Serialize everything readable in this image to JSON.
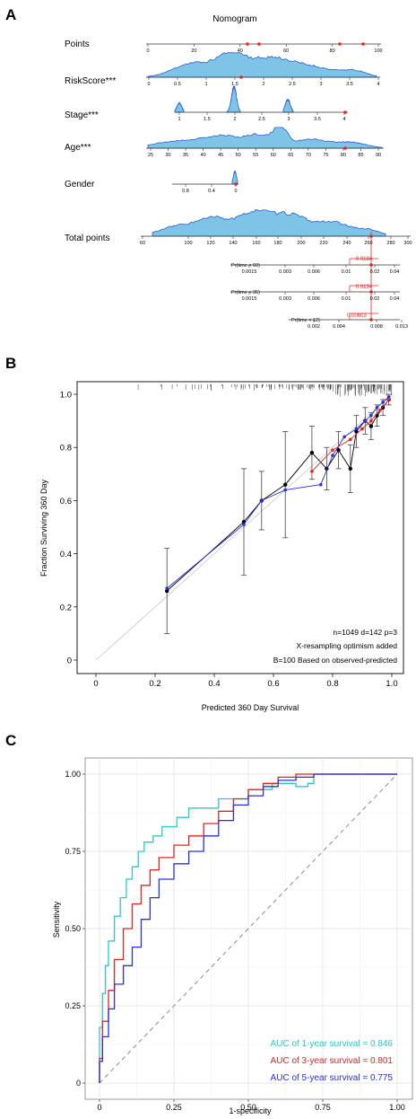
{
  "panels": {
    "A": {
      "label": "A",
      "title": "Nomogram",
      "points_label": "Points",
      "points_ticks": [
        "0",
        "20",
        "40",
        "60",
        "80",
        "100"
      ],
      "rows": [
        {
          "label": "RiskScore***",
          "ticks": [
            "0",
            "0.5",
            "1",
            "1.5",
            "2",
            "2.5",
            "3",
            "3.5",
            "4"
          ]
        },
        {
          "label": "Stage***",
          "ticks": [
            "1",
            "1.5",
            "2",
            "2.5",
            "3",
            "3.5",
            "4"
          ]
        },
        {
          "label": "Age***",
          "ticks": [
            "25",
            "30",
            "35",
            "40",
            "45",
            "50",
            "55",
            "60",
            "65",
            "70",
            "75",
            "80",
            "85",
            "90"
          ]
        },
        {
          "label": "Gender",
          "ticks": [
            "0.8",
            "0.4",
            "0"
          ]
        }
      ],
      "total_label": "Total points",
      "total_ticks": [
        "60",
        "100",
        "120",
        "140",
        "160",
        "180",
        "200",
        "220",
        "240",
        "260",
        "280",
        "300"
      ],
      "total_value": "268",
      "prob_rows": [
        {
          "label": "Pr(time < 60)",
          "ticks": [
            "0.0015",
            "0.003",
            "0.006",
            "0.01",
            "0.02",
            "0.04"
          ],
          "value": "0.0184"
        },
        {
          "label": "Pr(time < 36)",
          "ticks": [
            "0.0015",
            "0.003",
            "0.006",
            "0.01",
            "0.02",
            "0.04"
          ],
          "value": "0.0134"
        },
        {
          "label": "Pr(time < 12)",
          "ticks": [
            "0.002",
            "0.004",
            "0.008",
            "0.013"
          ],
          "value": "0.00603"
        }
      ]
    },
    "B": {
      "label": "B",
      "xlabel": "Predicted 360 Day Survival",
      "ylabel": "Fraction Surviving 360 Day",
      "xticks": [
        "0",
        "0.2",
        "0.4",
        "0.6",
        "0.8",
        "1.0"
      ],
      "yticks": [
        "0",
        "0.2",
        "0.4",
        "0.6",
        "0.8",
        "1.0"
      ],
      "notes": [
        "n=1049 d=142 p=3",
        "X-resampling optimism added",
        "B=100 Based on observed-predicted"
      ]
    },
    "C": {
      "label": "C",
      "xlabel": "1-specificity",
      "ylabel": "Sensitivity",
      "xticks": [
        "0",
        "0.25",
        "0.50",
        "0.75",
        "1.00"
      ],
      "yticks": [
        "0",
        "0.25",
        "0.50",
        "0.75",
        "1.00"
      ],
      "legend": [
        {
          "text": "AUC of 1-year survival = 0.846",
          "color": "#2ec7c7"
        },
        {
          "text": "AUC of 3-year survival = 0.801",
          "color": "#e8231f"
        },
        {
          "text": "AUC of 5-year survival = 0.775",
          "color": "#2b2fe0"
        }
      ]
    }
  },
  "chart_data": [
    {
      "type": "area",
      "title": "Nomogram",
      "axes": [
        {
          "name": "Points",
          "range": [
            0,
            100
          ]
        },
        {
          "name": "RiskScore***",
          "range": [
            0,
            4
          ]
        },
        {
          "name": "Stage***",
          "range": [
            1,
            4
          ]
        },
        {
          "name": "Age***",
          "range": [
            25,
            90
          ]
        },
        {
          "name": "Gender",
          "range": [
            0,
            1
          ]
        },
        {
          "name": "Total points",
          "range": [
            60,
            300
          ]
        }
      ],
      "total_points_selected": 268,
      "probabilities": [
        {
          "name": "Pr(time < 60)",
          "value": 0.0184
        },
        {
          "name": "Pr(time < 36)",
          "value": 0.0134
        },
        {
          "name": "Pr(time < 12)",
          "value": 0.00603
        }
      ]
    },
    {
      "type": "line",
      "xlabel": "Predicted 360 Day Survival",
      "ylabel": "Fraction Surviving 360 Day",
      "xlim": [
        0,
        1
      ],
      "ylim": [
        0,
        1
      ],
      "series": [
        {
          "color": "#000000",
          "x": [
            0.24,
            0.5,
            0.56,
            0.64,
            0.73,
            0.78,
            0.82,
            0.86,
            0.88,
            0.91,
            0.93,
            0.95,
            0.97,
            0.99
          ],
          "y": [
            0.26,
            0.52,
            0.6,
            0.66,
            0.78,
            0.72,
            0.79,
            0.72,
            0.86,
            0.9,
            0.88,
            0.92,
            0.95,
            0.98
          ],
          "err": [
            0.16,
            0.2,
            0.11,
            0.2,
            0.1,
            0.08,
            0.07,
            0.09,
            0.06,
            0.05,
            0.05,
            0.04,
            0.03,
            0.02
          ]
        },
        {
          "color": "#2b2fe0",
          "x": [
            0.24,
            0.5,
            0.56,
            0.64,
            0.76,
            0.8,
            0.84,
            0.88,
            0.91,
            0.93,
            0.95,
            0.97,
            0.99
          ],
          "y": [
            0.27,
            0.51,
            0.6,
            0.64,
            0.66,
            0.77,
            0.84,
            0.87,
            0.9,
            0.92,
            0.95,
            0.97,
            0.99
          ]
        },
        {
          "color": "#e8231f",
          "x": [
            0.73,
            0.8,
            0.86,
            0.9,
            0.93,
            0.96,
            0.99
          ],
          "y": [
            0.71,
            0.79,
            0.83,
            0.87,
            0.9,
            0.94,
            0.98
          ]
        }
      ]
    },
    {
      "type": "line",
      "xlabel": "1-specificity",
      "ylabel": "Sensitivity",
      "xlim": [
        0,
        1
      ],
      "ylim": [
        0,
        1
      ],
      "series": [
        {
          "name": "AUC of 1-year survival = 0.846",
          "color": "#2ec7c7",
          "x": [
            0,
            0.01,
            0.02,
            0.03,
            0.05,
            0.07,
            0.09,
            0.11,
            0.13,
            0.15,
            0.18,
            0.21,
            0.26,
            0.3,
            0.4,
            0.5,
            0.58,
            0.62,
            0.66,
            0.7,
            0.72,
            0.75,
            1.0
          ],
          "y": [
            0,
            0.18,
            0.29,
            0.38,
            0.46,
            0.54,
            0.6,
            0.66,
            0.7,
            0.75,
            0.78,
            0.8,
            0.83,
            0.86,
            0.89,
            0.92,
            0.95,
            0.97,
            0.97,
            0.96,
            0.97,
            1.0,
            1.0
          ]
        },
        {
          "name": "AUC of 3-year survival = 0.801",
          "color": "#e8231f",
          "x": [
            0,
            0.01,
            0.03,
            0.05,
            0.08,
            0.11,
            0.14,
            0.17,
            0.2,
            0.25,
            0.3,
            0.35,
            0.4,
            0.45,
            0.5,
            0.55,
            0.6,
            0.66,
            0.72,
            0.78,
            1.0
          ],
          "y": [
            0,
            0.08,
            0.2,
            0.3,
            0.4,
            0.5,
            0.58,
            0.64,
            0.69,
            0.73,
            0.77,
            0.8,
            0.84,
            0.88,
            0.92,
            0.95,
            0.97,
            0.99,
            1.0,
            1.0,
            1.0
          ]
        },
        {
          "name": "AUC of 5-year survival = 0.775",
          "color": "#2b2fe0",
          "x": [
            0,
            0.01,
            0.03,
            0.05,
            0.08,
            0.11,
            0.14,
            0.17,
            0.2,
            0.25,
            0.3,
            0.35,
            0.4,
            0.45,
            0.5,
            0.55,
            0.6,
            0.66,
            0.72,
            0.78,
            1.0
          ],
          "y": [
            0,
            0.07,
            0.15,
            0.24,
            0.32,
            0.38,
            0.44,
            0.53,
            0.6,
            0.66,
            0.71,
            0.75,
            0.8,
            0.85,
            0.9,
            0.93,
            0.96,
            0.98,
            0.99,
            1.0,
            1.0
          ]
        }
      ]
    }
  ]
}
